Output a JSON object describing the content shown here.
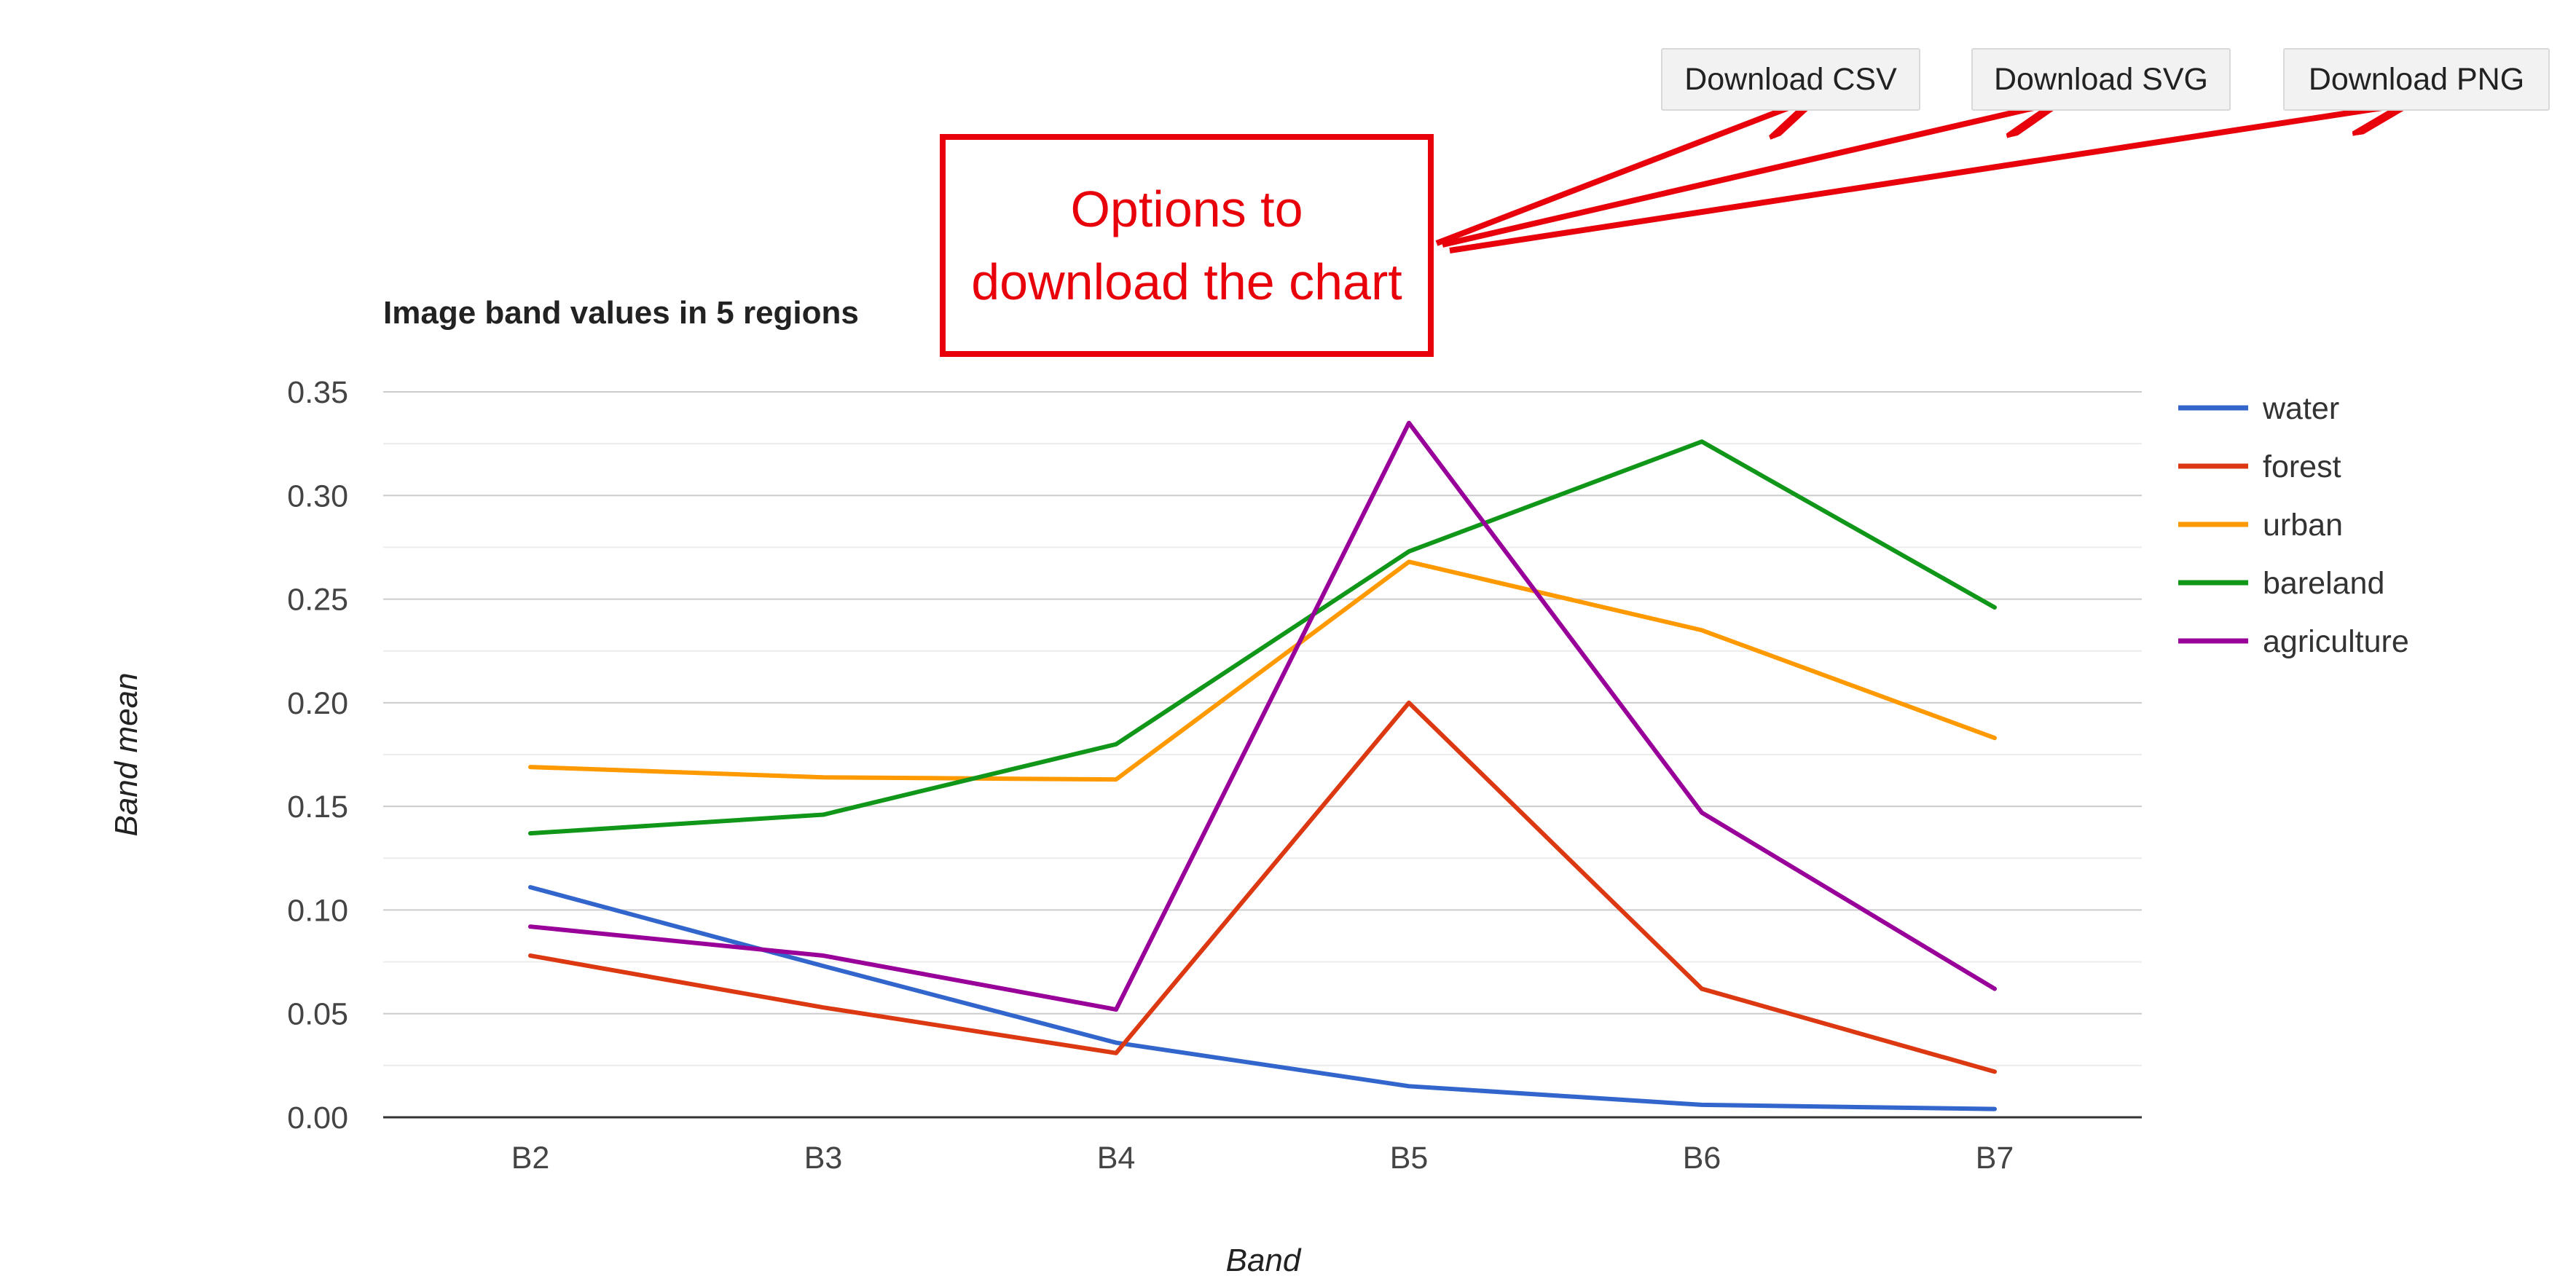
{
  "download_buttons": {
    "csv_label": "Download CSV",
    "svg_label": "Download SVG",
    "png_label": "Download PNG"
  },
  "callout": {
    "text": "Options to download the chart",
    "color": "#e8000b"
  },
  "chart_data": {
    "type": "line",
    "title": "Image band values in 5 regions",
    "xlabel": "Band",
    "ylabel": "Band mean",
    "categories": [
      "B2",
      "B3",
      "B4",
      "B5",
      "B6",
      "B7"
    ],
    "ylim": [
      0,
      0.35
    ],
    "yticks": [
      "0.00",
      "0.05",
      "0.10",
      "0.15",
      "0.20",
      "0.25",
      "0.30",
      "0.35"
    ],
    "grid": true,
    "legend_position": "right",
    "series": [
      {
        "name": "water",
        "color": "#3366cc",
        "values": [
          0.111,
          0.073,
          0.036,
          0.015,
          0.006,
          0.004
        ]
      },
      {
        "name": "forest",
        "color": "#dc3912",
        "values": [
          0.078,
          0.053,
          0.031,
          0.2,
          0.062,
          0.022
        ]
      },
      {
        "name": "urban",
        "color": "#ff9900",
        "values": [
          0.169,
          0.164,
          0.163,
          0.268,
          0.235,
          0.183
        ]
      },
      {
        "name": "bareland",
        "color": "#109618",
        "values": [
          0.137,
          0.146,
          0.18,
          0.273,
          0.326,
          0.246
        ]
      },
      {
        "name": "agriculture",
        "color": "#990099",
        "values": [
          0.092,
          0.078,
          0.052,
          0.335,
          0.147,
          0.062
        ]
      }
    ]
  }
}
